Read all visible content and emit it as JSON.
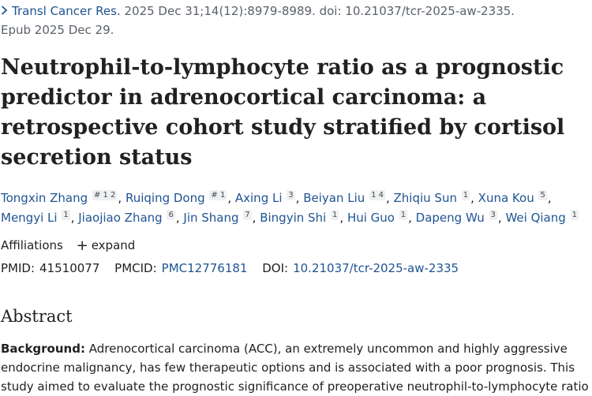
{
  "citation": {
    "journal": "Transl Cancer Res.",
    "details": " 2025 Dec 31;14(12):8979-8989. doi: 10.21037/tcr-2025-aw-2335.",
    "epub": "Epub 2025 Dec 29."
  },
  "title": "Neutrophil-to-lymphocyte ratio as a prognostic predictor in adrenocortical carcinoma: a retrospective cohort study stratified by cortisol secretion status",
  "authors": [
    {
      "name": "Tongxin Zhang",
      "sup": "# 1 2"
    },
    {
      "name": "Ruiqing Dong",
      "sup": "# 1"
    },
    {
      "name": "Axing Li",
      "sup": "3"
    },
    {
      "name": "Beiyan Liu",
      "sup": "1 4"
    },
    {
      "name": "Zhiqiu Sun",
      "sup": "1"
    },
    {
      "name": "Xuna Kou",
      "sup": "5"
    },
    {
      "name": "Mengyi Li",
      "sup": "1"
    },
    {
      "name": "Jiaojiao Zhang",
      "sup": "6"
    },
    {
      "name": "Jin Shang",
      "sup": "7"
    },
    {
      "name": "Bingyin Shi",
      "sup": "1"
    },
    {
      "name": "Hui Guo",
      "sup": "1"
    },
    {
      "name": "Dapeng Wu",
      "sup": "3"
    },
    {
      "name": "Wei Qiang",
      "sup": "1"
    }
  ],
  "affiliations": {
    "label": "Affiliations",
    "expand_label": "expand"
  },
  "ids": {
    "pmid_label": "PMID:",
    "pmid": "41510077",
    "pmcid_label": "PMCID:",
    "pmcid": "PMC12776181",
    "doi_label": "DOI:",
    "doi": "10.21037/tcr-2025-aw-2335"
  },
  "abstract": {
    "heading": "Abstract",
    "background_label": "Background:",
    "background_text": " Adrenocortical carcinoma (ACC), an extremely uncommon and highly aggressive endocrine malignancy, has few therapeutic options and is associated with a poor prognosis. This study aimed to evaluate the prognostic significance of preoperative neutrophil-to-lymphocyte ratio"
  },
  "colors": {
    "link": "#205493",
    "text": "#212121",
    "muted": "#5b616b"
  }
}
